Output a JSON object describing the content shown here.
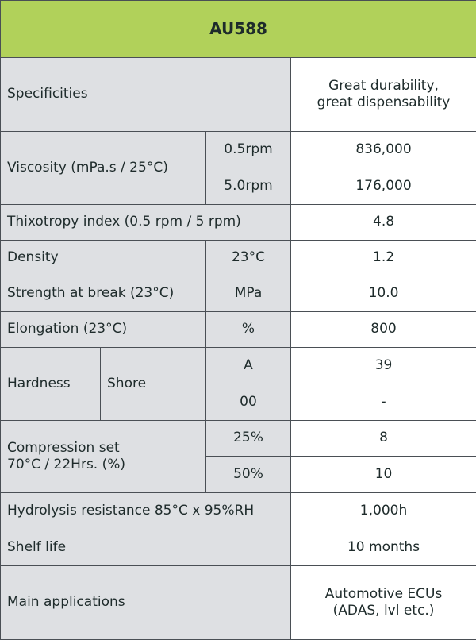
{
  "title": "AU588",
  "rows": {
    "specificities": {
      "label": "Specificities",
      "value": "Great durability,\ngreat dispensability"
    },
    "viscosity": {
      "label": "Viscosity (mPa.s / 25°C)",
      "cond1": "0.5rpm",
      "value1": "836,000",
      "cond2": "5.0rpm",
      "value2": "176,000"
    },
    "thixotropy": {
      "label": "Thixotropy index (0.5 rpm / 5 rpm)",
      "value": "4.8"
    },
    "density": {
      "label": "Density",
      "cond": "23°C",
      "value": "1.2"
    },
    "strength": {
      "label": "Strength at break (23°C)",
      "cond": "MPa",
      "value": "10.0"
    },
    "elongation": {
      "label": "Elongation (23°C)",
      "cond": "%",
      "value": "800"
    },
    "hardness": {
      "label": "Hardness",
      "sublabel": "Shore",
      "cond1": "A",
      "value1": "39",
      "cond2": "00",
      "value2": "-"
    },
    "compression": {
      "label": "Compression set\n70°C / 22Hrs. (%)",
      "cond1": "25%",
      "value1": "8",
      "cond2": "50%",
      "value2": "10"
    },
    "hydrolysis": {
      "label": "Hydrolysis resistance 85°C x 95%RH",
      "value": "1,000h"
    },
    "shelf_life": {
      "label": "Shelf life",
      "value": "10 months"
    },
    "applications": {
      "label": "Main applications",
      "value": "Automotive ECUs\n(ADAS, lvl etc.)"
    }
  }
}
